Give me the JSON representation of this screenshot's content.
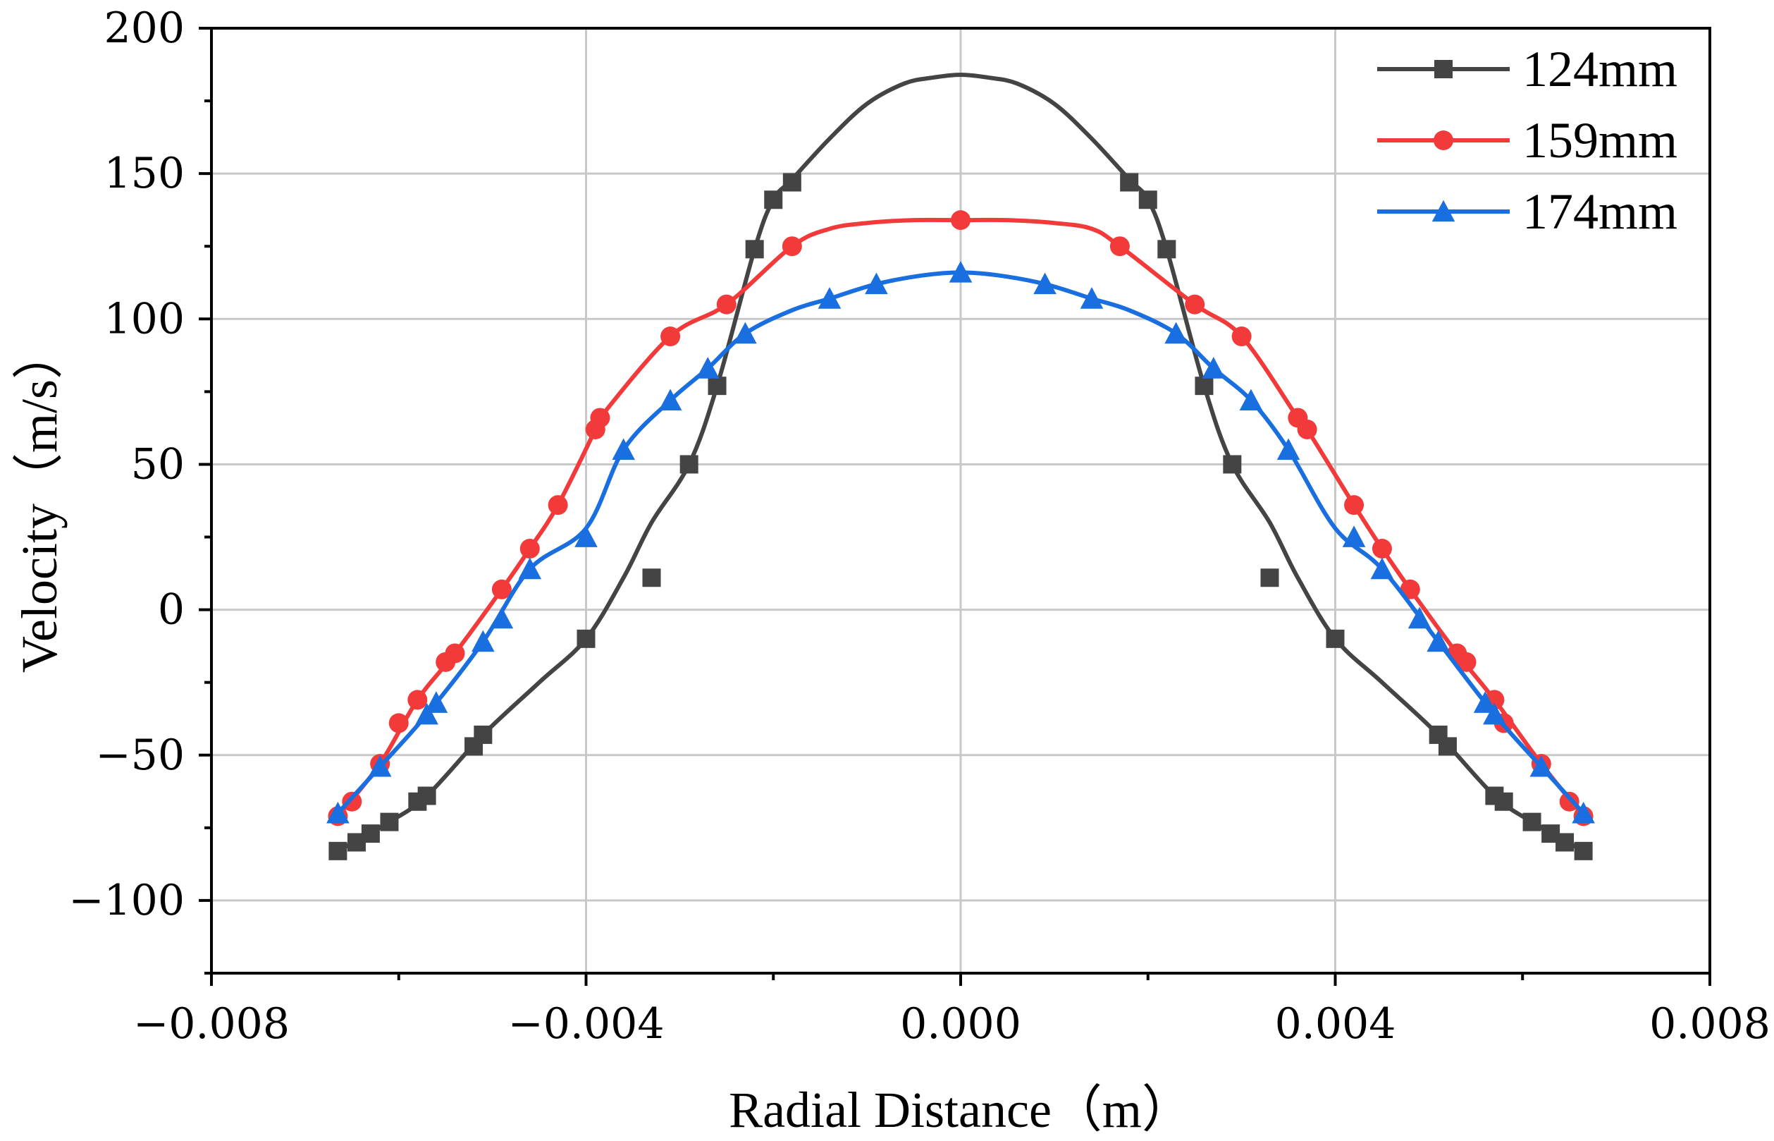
{
  "chart_data": {
    "type": "line",
    "xlabel": "Radial Distance（m）",
    "ylabel": "Velocity（m/s）",
    "xlim": [
      -0.008,
      0.008
    ],
    "ylim": [
      -125,
      200
    ],
    "xticks": [
      -0.008,
      -0.004,
      0.0,
      0.004,
      0.008
    ],
    "xtick_labels": [
      "−0.008",
      "−0.004",
      "0.000",
      "0.004",
      "0.008"
    ],
    "yticks": [
      -100,
      -50,
      0,
      50,
      100,
      150,
      200
    ],
    "ytick_labels": [
      "−100",
      "−50",
      "0",
      "50",
      "100",
      "150",
      "200"
    ],
    "grid": true,
    "legend_position": "top-right",
    "series": [
      {
        "name": "124mm",
        "color": "#444444",
        "marker": "square",
        "x": [
          -0.00665,
          -0.00645,
          -0.0063,
          -0.0061,
          -0.0058,
          -0.0057,
          -0.0052,
          -0.0051,
          -0.004,
          -0.0033,
          -0.0029,
          -0.0026,
          -0.0022,
          -0.002,
          -0.0018,
          0.0018,
          0.002,
          0.0022,
          0.0026,
          0.0029,
          0.0033,
          0.004,
          0.0051,
          0.0052,
          0.0057,
          0.0058,
          0.0061,
          0.0063,
          0.00645,
          0.00665
        ],
        "y": [
          -83,
          -80,
          -77,
          -73,
          -66,
          -64,
          -47,
          -43,
          -10,
          11,
          50,
          77,
          124,
          141,
          147,
          147,
          141,
          124,
          77,
          50,
          11,
          -10,
          -43,
          -47,
          -64,
          -66,
          -73,
          -77,
          -80,
          -83
        ],
        "curve_x": [
          -0.00665,
          -0.0061,
          -0.0057,
          -0.0051,
          -0.0045,
          -0.004,
          -0.0036,
          -0.0033,
          -0.0029,
          -0.0026,
          -0.0022,
          -0.002,
          -0.0018,
          -0.0014,
          -0.001,
          -0.0006,
          -0.0003,
          0.0,
          0.0003,
          0.0006,
          0.001,
          0.0014,
          0.0018,
          0.002,
          0.0022,
          0.0026,
          0.0029,
          0.0033,
          0.0036,
          0.004,
          0.0045,
          0.0051,
          0.0057,
          0.0061,
          0.00665
        ],
        "curve_y": [
          -83,
          -73,
          -64,
          -43,
          -25,
          -10,
          11,
          30,
          50,
          77,
          124,
          141,
          148,
          162,
          174,
          181,
          183,
          184,
          183,
          181,
          174,
          162,
          148,
          141,
          124,
          77,
          50,
          30,
          11,
          -10,
          -25,
          -43,
          -64,
          -73,
          -83
        ]
      },
      {
        "name": "159mm",
        "color": "#f23a3a",
        "marker": "circle",
        "x": [
          -0.00665,
          -0.0065,
          -0.0062,
          -0.006,
          -0.0058,
          -0.0055,
          -0.0054,
          -0.0049,
          -0.0046,
          -0.0043,
          -0.0039,
          -0.00385,
          -0.0031,
          -0.0025,
          -0.0018,
          0.0,
          0.0017,
          0.0025,
          0.003,
          0.0036,
          0.0037,
          0.0042,
          0.0045,
          0.0048,
          0.0053,
          0.0054,
          0.0057,
          0.0058,
          0.0062,
          0.0065,
          0.00665
        ],
        "y": [
          -71,
          -66,
          -53,
          -39,
          -31,
          -18,
          -15,
          7,
          21,
          36,
          62,
          66,
          94,
          105,
          125,
          134,
          125,
          105,
          94,
          66,
          62,
          36,
          21,
          7,
          -15,
          -18,
          -31,
          -39,
          -53,
          -66,
          -71
        ],
        "curve_x": [
          -0.00665,
          -0.0062,
          -0.0058,
          -0.0054,
          -0.0049,
          -0.0046,
          -0.0043,
          -0.0039,
          -0.00385,
          -0.0031,
          -0.0025,
          -0.0018,
          -0.0014,
          -0.001,
          -0.0005,
          0.0,
          0.0005,
          0.001,
          0.0014,
          0.0017,
          0.0025,
          0.003,
          0.0036,
          0.0037,
          0.0042,
          0.0045,
          0.0048,
          0.0053,
          0.0057,
          0.0062,
          0.00665
        ],
        "curve_y": [
          -71,
          -53,
          -31,
          -15,
          7,
          21,
          36,
          62,
          66,
          94,
          105,
          125,
          131,
          133,
          134,
          134,
          134,
          133,
          131,
          125,
          105,
          94,
          66,
          62,
          36,
          21,
          7,
          -15,
          -31,
          -53,
          -71
        ]
      },
      {
        "name": "174mm",
        "color": "#1a6fe0",
        "marker": "triangle",
        "x": [
          -0.00665,
          -0.0062,
          -0.0057,
          -0.0056,
          -0.0051,
          -0.0049,
          -0.0046,
          -0.004,
          -0.0036,
          -0.0031,
          -0.0027,
          -0.0023,
          -0.0014,
          -0.0009,
          0.0,
          0.0009,
          0.0014,
          0.0023,
          0.0027,
          0.0031,
          0.0035,
          0.0042,
          0.0045,
          0.0049,
          0.0051,
          0.0056,
          0.0057,
          0.0062,
          0.00665
        ],
        "y": [
          -70,
          -54,
          -36,
          -32,
          -11,
          -3,
          14,
          25,
          55,
          72,
          83,
          95,
          107,
          112,
          116,
          112,
          107,
          95,
          83,
          72,
          55,
          25,
          14,
          -3,
          -11,
          -32,
          -36,
          -54,
          -70
        ],
        "curve_x": [
          -0.00665,
          -0.0062,
          -0.0057,
          -0.0051,
          -0.0046,
          -0.004,
          -0.0036,
          -0.0031,
          -0.0027,
          -0.0023,
          -0.0018,
          -0.0014,
          -0.0009,
          -0.0004,
          0.0,
          0.0004,
          0.0009,
          0.0014,
          0.0018,
          0.0023,
          0.0027,
          0.0031,
          0.0035,
          0.004,
          0.0045,
          0.0051,
          0.0057,
          0.0062,
          0.00665
        ],
        "curve_y": [
          -70,
          -54,
          -36,
          -11,
          14,
          28,
          55,
          72,
          83,
          95,
          103,
          107,
          112,
          115,
          116,
          115,
          112,
          107,
          103,
          95,
          83,
          72,
          55,
          28,
          14,
          -11,
          -36,
          -54,
          -70
        ]
      }
    ]
  }
}
